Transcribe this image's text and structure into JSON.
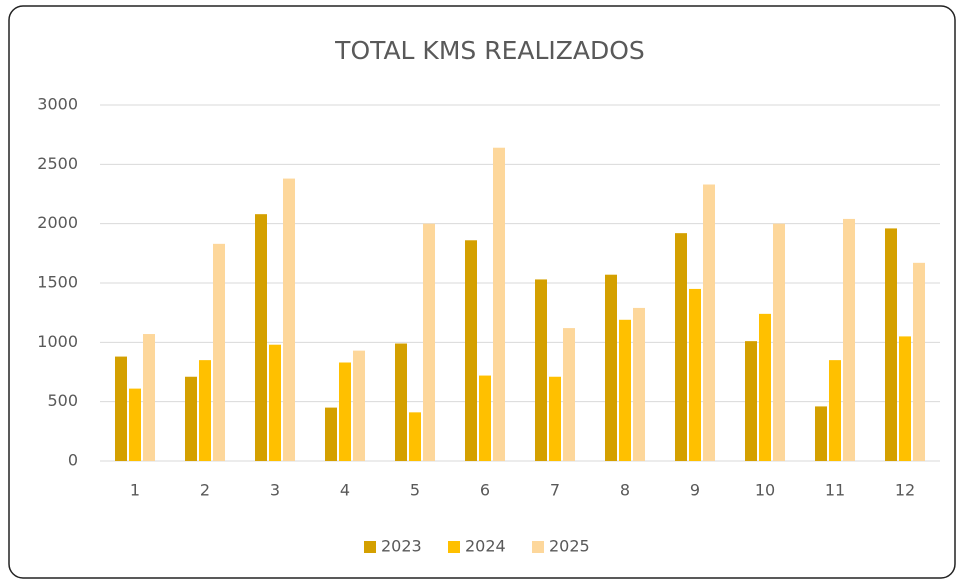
{
  "chart_data": {
    "type": "bar",
    "title": "TOTAL KMS REALIZADOS",
    "categories": [
      "1",
      "2",
      "3",
      "4",
      "5",
      "6",
      "7",
      "8",
      "9",
      "10",
      "11",
      "12"
    ],
    "series": [
      {
        "name": "2023",
        "color": "#d4a000",
        "values": [
          880,
          710,
          2080,
          450,
          990,
          1860,
          1530,
          1570,
          1920,
          1010,
          460,
          1960
        ]
      },
      {
        "name": "2024",
        "color": "#ffc000",
        "values": [
          610,
          850,
          980,
          830,
          410,
          720,
          710,
          1190,
          1450,
          1240,
          850,
          1050
        ]
      },
      {
        "name": "2025",
        "color": "#fdd79b",
        "values": [
          1070,
          1830,
          2380,
          930,
          2000,
          2640,
          1120,
          1290,
          2330,
          2000,
          2040,
          1670
        ]
      }
    ],
    "ylim": [
      0,
      3000
    ],
    "yticks": [
      0,
      500,
      1000,
      1500,
      2000,
      2500,
      3000
    ],
    "grid": true,
    "legend": "bottom"
  }
}
